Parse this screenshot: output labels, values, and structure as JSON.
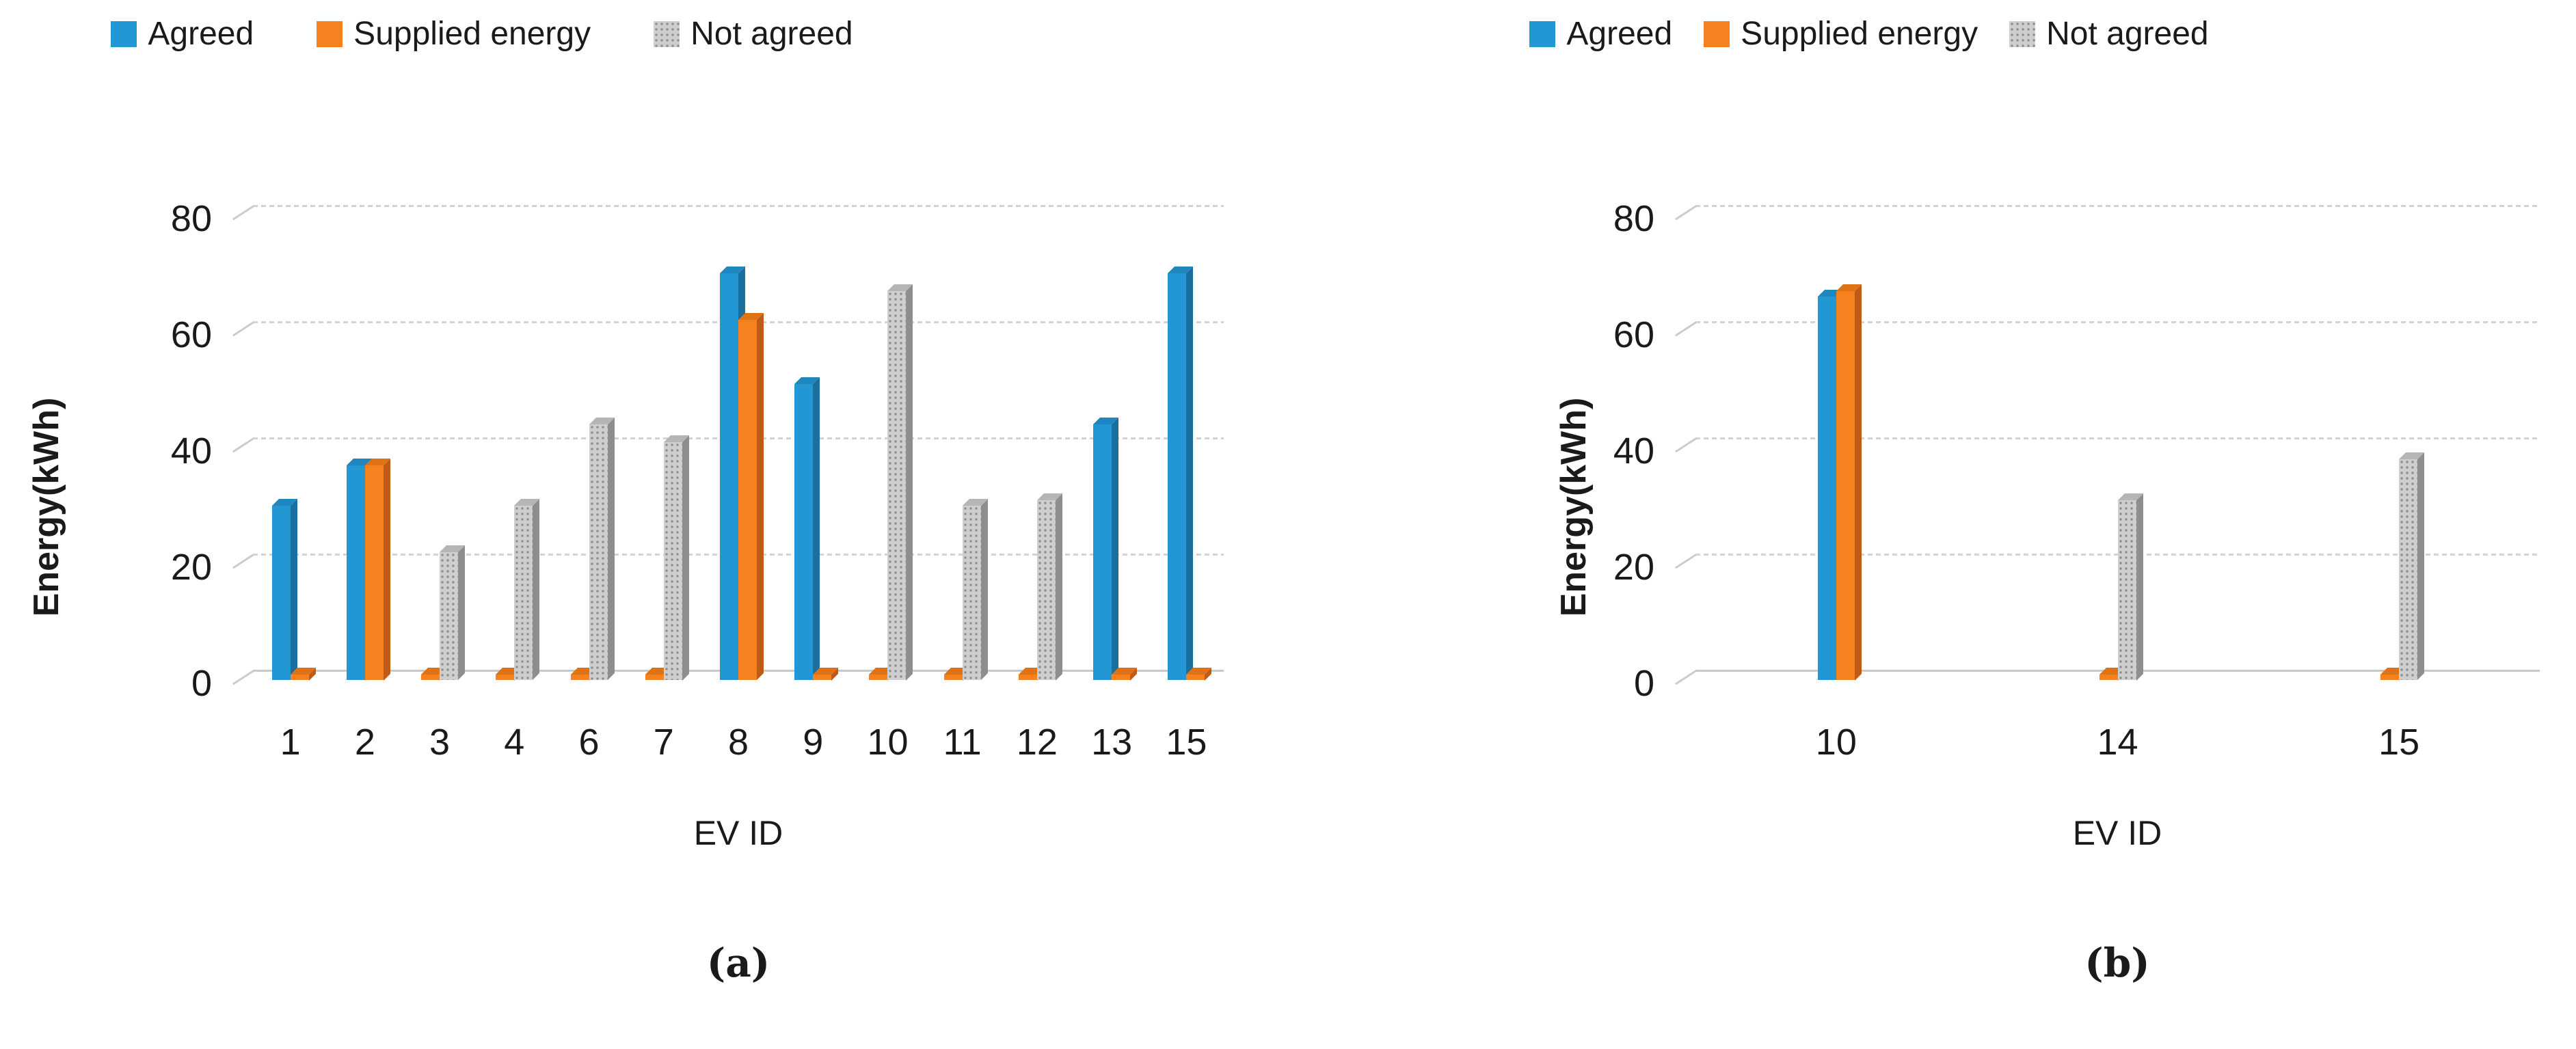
{
  "chart_data": [
    {
      "type": "bar",
      "panel": "a",
      "caption": "(a)",
      "xlabel": "EV ID",
      "ylabel": "Energy(kWh)",
      "ylim": [
        0,
        80
      ],
      "yticks": [
        0,
        20,
        40,
        60,
        80
      ],
      "legend_position": "top",
      "grid": "horizontal-dotted",
      "categories": [
        "1",
        "2",
        "3",
        "4",
        "6",
        "7",
        "8",
        "9",
        "10",
        "11",
        "12",
        "13",
        "15"
      ],
      "series": [
        {
          "name": "Agreed",
          "color": "#2397d4",
          "side": "#1a6f9e",
          "top": "#1f87bd",
          "values": [
            30,
            37,
            0,
            0,
            0,
            0,
            70,
            51,
            0,
            0,
            0,
            44,
            70
          ]
        },
        {
          "name": "Supplied energy",
          "color": "#f5821f",
          "side": "#bf5b16",
          "top": "#de7315",
          "values": [
            1,
            37,
            1,
            1,
            1,
            1,
            62,
            1,
            1,
            1,
            1,
            1,
            1
          ]
        },
        {
          "name": "Not agreed",
          "color": "#cfcfcf",
          "side": "#8e8e8e",
          "top": "#b5b5b5",
          "pattern": true,
          "values": [
            0,
            0,
            22,
            30,
            44,
            41,
            0,
            0,
            67,
            30,
            31,
            0,
            0
          ]
        }
      ]
    },
    {
      "type": "bar",
      "panel": "b",
      "caption": "(b)",
      "xlabel": "EV ID",
      "ylabel": "Energy(kWh)",
      "ylim": [
        0,
        80
      ],
      "yticks": [
        0,
        20,
        40,
        60,
        80
      ],
      "legend_position": "top",
      "grid": "horizontal-dotted",
      "categories": [
        "10",
        "14",
        "15"
      ],
      "series": [
        {
          "name": "Agreed",
          "color": "#2397d4",
          "side": "#1a6f9e",
          "top": "#1f87bd",
          "values": [
            66,
            0,
            0
          ]
        },
        {
          "name": "Supplied energy",
          "color": "#f5821f",
          "side": "#bf5b16",
          "top": "#de7315",
          "values": [
            67,
            1,
            1
          ]
        },
        {
          "name": "Not agreed",
          "color": "#cfcfcf",
          "side": "#8e8e8e",
          "top": "#b5b5b5",
          "pattern": true,
          "values": [
            0,
            31,
            38
          ]
        }
      ]
    }
  ]
}
